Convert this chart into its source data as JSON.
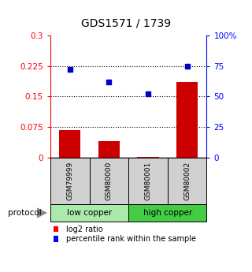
{
  "title": "GDS1571 / 1739",
  "samples": [
    "GSM79999",
    "GSM80000",
    "GSM80001",
    "GSM80002"
  ],
  "log2_ratio": [
    0.068,
    0.04,
    0.003,
    0.185
  ],
  "percentile_rank": [
    72,
    62,
    52,
    75
  ],
  "bar_color": "#cc0000",
  "dot_color": "#0000cc",
  "ylim_left": [
    0,
    0.3
  ],
  "ylim_right": [
    0,
    100
  ],
  "yticks_left": [
    0,
    0.075,
    0.15,
    0.225,
    0.3
  ],
  "ytick_labels_left": [
    "0",
    "0.075",
    "0.15",
    "0.225",
    "0.3"
  ],
  "yticks_right": [
    0,
    25,
    50,
    75,
    100
  ],
  "ytick_labels_right": [
    "0",
    "25",
    "50",
    "75",
    "100%"
  ],
  "hlines": [
    0.075,
    0.15,
    0.225
  ],
  "groups": [
    {
      "label": "low copper",
      "samples": [
        "GSM79999",
        "GSM80000"
      ],
      "color": "#aaeaaa"
    },
    {
      "label": "high copper",
      "samples": [
        "GSM80001",
        "GSM80002"
      ],
      "color": "#44cc44"
    }
  ],
  "protocol_label": "protocol",
  "legend_bar_label": "log2 ratio",
  "legend_dot_label": "percentile rank within the sample",
  "title_fontsize": 10,
  "tick_fontsize": 7.5,
  "sample_fontsize": 6.5,
  "group_fontsize": 7.5,
  "legend_fontsize": 7
}
